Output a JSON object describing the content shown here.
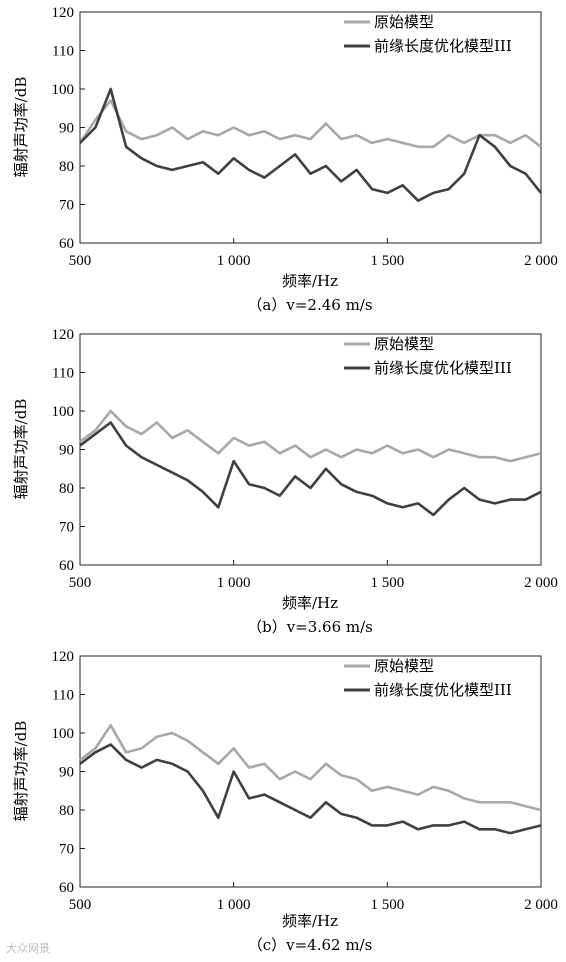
{
  "legend": {
    "original": "原始模型",
    "optimized": "前缘长度优化模型III"
  },
  "watermark": "大众网景",
  "chart_data": [
    {
      "type": "line",
      "caption": "（a）v=2.46 m/s",
      "xlabel": "频率/Hz",
      "ylabel": "辐射声功率/dB",
      "xlim": [
        500,
        2000
      ],
      "ylim": [
        60,
        120
      ],
      "xticks": [
        "500",
        "1 000",
        "1 500",
        "2 000"
      ],
      "yticks": [
        "60",
        "70",
        "80",
        "90",
        "100",
        "110",
        "120"
      ],
      "legend_position": "top-right",
      "x": [
        500,
        550,
        600,
        650,
        700,
        750,
        800,
        850,
        900,
        950,
        1000,
        1050,
        1100,
        1150,
        1200,
        1250,
        1300,
        1350,
        1400,
        1450,
        1500,
        1550,
        1600,
        1650,
        1700,
        1750,
        1800,
        1850,
        1900,
        1950,
        2000
      ],
      "series": [
        {
          "name": "原始模型",
          "color": "#a8a8a8",
          "values": [
            86,
            92,
            97,
            89,
            87,
            88,
            90,
            87,
            89,
            88,
            90,
            88,
            89,
            87,
            88,
            87,
            91,
            87,
            88,
            86,
            87,
            86,
            85,
            85,
            88,
            86,
            88,
            88,
            86,
            88,
            85
          ]
        },
        {
          "name": "前缘长度优化模型III",
          "color": "#404040",
          "values": [
            86,
            90,
            100,
            85,
            82,
            80,
            79,
            80,
            81,
            78,
            82,
            79,
            77,
            80,
            83,
            78,
            80,
            76,
            79,
            74,
            73,
            75,
            71,
            73,
            74,
            78,
            88,
            85,
            80,
            78,
            73
          ]
        }
      ]
    },
    {
      "type": "line",
      "caption": "（b）v=3.66 m/s",
      "xlabel": "频率/Hz",
      "ylabel": "辐射声功率/dB",
      "xlim": [
        500,
        2000
      ],
      "ylim": [
        60,
        120
      ],
      "xticks": [
        "500",
        "1 000",
        "1 500",
        "2 000"
      ],
      "yticks": [
        "60",
        "70",
        "80",
        "90",
        "100",
        "110",
        "120"
      ],
      "legend_position": "top-right",
      "x": [
        500,
        550,
        600,
        650,
        700,
        750,
        800,
        850,
        900,
        950,
        1000,
        1050,
        1100,
        1150,
        1200,
        1250,
        1300,
        1350,
        1400,
        1450,
        1500,
        1550,
        1600,
        1650,
        1700,
        1750,
        1800,
        1850,
        1900,
        1950,
        2000
      ],
      "series": [
        {
          "name": "原始模型",
          "color": "#a8a8a8",
          "values": [
            92,
            95,
            100,
            96,
            94,
            97,
            93,
            95,
            92,
            89,
            93,
            91,
            92,
            89,
            91,
            88,
            90,
            88,
            90,
            89,
            91,
            89,
            90,
            88,
            90,
            89,
            88,
            88,
            87,
            88,
            89
          ]
        },
        {
          "name": "前缘长度优化模型III",
          "color": "#404040",
          "values": [
            91,
            94,
            97,
            91,
            88,
            86,
            84,
            82,
            79,
            75,
            87,
            81,
            80,
            78,
            83,
            80,
            85,
            81,
            79,
            78,
            76,
            75,
            76,
            73,
            77,
            80,
            77,
            76,
            77,
            77,
            79
          ]
        }
      ]
    },
    {
      "type": "line",
      "caption": "（c）v=4.62 m/s",
      "xlabel": "频率/Hz",
      "ylabel": "辐射声功率/dB",
      "xlim": [
        500,
        2000
      ],
      "ylim": [
        60,
        120
      ],
      "xticks": [
        "500",
        "1 000",
        "1 500",
        "2 000"
      ],
      "yticks": [
        "60",
        "70",
        "80",
        "90",
        "100",
        "110",
        "120"
      ],
      "legend_position": "top-right",
      "x": [
        500,
        550,
        600,
        650,
        700,
        750,
        800,
        850,
        900,
        950,
        1000,
        1050,
        1100,
        1150,
        1200,
        1250,
        1300,
        1350,
        1400,
        1450,
        1500,
        1550,
        1600,
        1650,
        1700,
        1750,
        1800,
        1850,
        1900,
        1950,
        2000
      ],
      "series": [
        {
          "name": "原始模型",
          "color": "#a8a8a8",
          "values": [
            93,
            96,
            102,
            95,
            96,
            99,
            100,
            98,
            95,
            92,
            96,
            91,
            92,
            88,
            90,
            88,
            92,
            89,
            88,
            85,
            86,
            85,
            84,
            86,
            85,
            83,
            82,
            82,
            82,
            81,
            80
          ]
        },
        {
          "name": "前缘长度优化模型III",
          "color": "#404040",
          "values": [
            92,
            95,
            97,
            93,
            91,
            93,
            92,
            90,
            85,
            78,
            90,
            83,
            84,
            82,
            80,
            78,
            82,
            79,
            78,
            76,
            76,
            77,
            75,
            76,
            76,
            77,
            75,
            75,
            74,
            75,
            76
          ]
        }
      ]
    }
  ]
}
